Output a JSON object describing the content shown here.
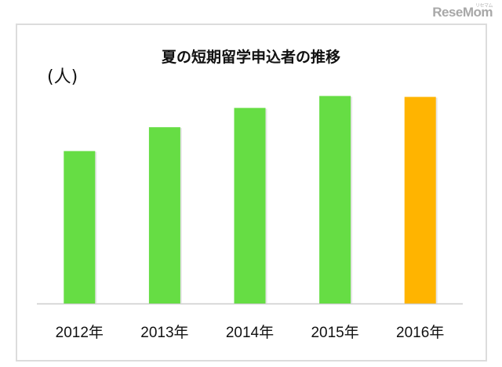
{
  "watermark": {
    "logo": "ReseMom",
    "logo_kana": "リセマム"
  },
  "chart_data": {
    "type": "bar",
    "title": "夏の短期留学申込者の推移",
    "ylabel": "(人)",
    "xlabel": "",
    "categories": [
      "2012年",
      "2013年",
      "2014年",
      "2015年",
      "2016年"
    ],
    "values": [
      166,
      192,
      213,
      226,
      225
    ],
    "ylim": [
      0,
      240
    ],
    "grid": false,
    "legend": "none",
    "colors": [
      "#66dd44",
      "#66dd44",
      "#66dd44",
      "#66dd44",
      "#ffb400"
    ],
    "axis_color": "#cccccc"
  }
}
